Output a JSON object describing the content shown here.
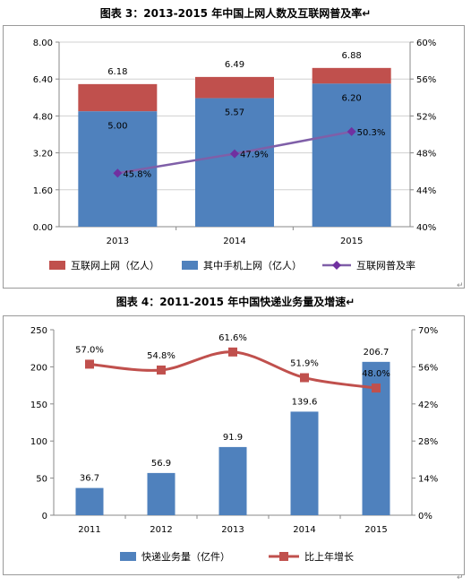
{
  "charts": [
    {
      "title": "图表 3：2013-2015 年中国上网人数及互联网普及率↵",
      "chart_data": {
        "type": "bar",
        "categories": [
          "2013",
          "2014",
          "2015"
        ],
        "series": [
          {
            "name": "互联网上网（亿人）",
            "values": [
              6.18,
              6.49,
              6.88
            ],
            "color": "#c0504d",
            "kind": "bar-total"
          },
          {
            "name": "其中手机上网（亿人）",
            "values": [
              5.0,
              5.57,
              6.2
            ],
            "color": "#4f81bd",
            "kind": "bar"
          },
          {
            "name": "互联网普及率",
            "values": [
              45.8,
              47.9,
              50.3
            ],
            "color": "#7f5fa8",
            "kind": "line",
            "axis": "right"
          }
        ],
        "value_labels": {
          "total": [
            "6.18",
            "6.49",
            "6.88"
          ],
          "mobile": [
            "5.00",
            "5.57",
            "6.20"
          ],
          "rate": [
            "45.8%",
            "47.9%",
            "50.3%"
          ]
        },
        "ylim": [
          0,
          8
        ],
        "y2lim": [
          40,
          60
        ],
        "yticks": [
          "0.00",
          "1.60",
          "3.20",
          "4.80",
          "6.40",
          "8.00"
        ],
        "y2ticks": [
          "40%",
          "44%",
          "48%",
          "52%",
          "56%",
          "60%"
        ],
        "grid": true,
        "legend": "bottom"
      }
    },
    {
      "title": "图表 4：2011-2015 年中国快递业务量及增速↵",
      "chart_data": {
        "type": "bar",
        "categories": [
          "2011",
          "2012",
          "2013",
          "2014",
          "2015"
        ],
        "series": [
          {
            "name": "快递业务量（亿件）",
            "values": [
              36.7,
              56.9,
              91.9,
              139.6,
              206.7
            ],
            "color": "#4f81bd",
            "kind": "bar"
          },
          {
            "name": "比上年增长",
            "values": [
              57.0,
              54.8,
              61.6,
              51.9,
              48.0
            ],
            "color": "#c0504d",
            "kind": "line",
            "axis": "right"
          }
        ],
        "value_labels": {
          "bar": [
            "36.7",
            "56.9",
            "91.9",
            "139.6",
            "206.7"
          ],
          "line": [
            "57.0%",
            "54.8%",
            "61.6%",
            "51.9%",
            "48.0%"
          ]
        },
        "ylim": [
          0,
          250
        ],
        "y2lim": [
          0,
          70
        ],
        "yticks": [
          "0",
          "50",
          "100",
          "150",
          "200",
          "250"
        ],
        "y2ticks": [
          "0%",
          "14%",
          "28%",
          "42%",
          "56%",
          "70%"
        ],
        "grid": false,
        "legend": "bottom"
      }
    }
  ]
}
